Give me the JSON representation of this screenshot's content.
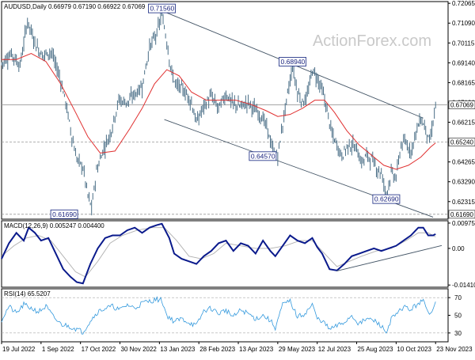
{
  "chart_data": [
    {
      "type": "line",
      "title": "AUDUSD,Daily  0.66979 0.67190 0.66922 0.67069",
      "watermark": "ActionForex.com",
      "ylim": [
        0.6145,
        0.7215
      ],
      "y_ticks": [
        0.72065,
        0.7109,
        0.70115,
        0.6914,
        0.68165,
        0.6719,
        0.66215,
        0.6524,
        0.64265,
        0.6329,
        0.62315,
        0.6134
      ],
      "x_tick_labels": [
        "19 Jul 2022",
        "1 Sep 2022",
        "17 Oct 2022",
        "30 Nov 2022",
        "13 Jan 2023",
        "28 Feb 2023",
        "13 Apr 2023",
        "29 May 2023",
        "12 Jul 2023",
        "25 Aug 2023",
        "10 Oct 2023",
        "23 Nov 2023"
      ],
      "x_tick_index": [
        0,
        32,
        64,
        96,
        128,
        160,
        192,
        224,
        256,
        288,
        320,
        352
      ],
      "price_path": [
        [
          0,
          0.691
        ],
        [
          8,
          0.696
        ],
        [
          15,
          0.69
        ],
        [
          21,
          0.712
        ],
        [
          28,
          0.7
        ],
        [
          33,
          0.695
        ],
        [
          40,
          0.697
        ],
        [
          47,
          0.685
        ],
        [
          52,
          0.672
        ],
        [
          57,
          0.655
        ],
        [
          61,
          0.644
        ],
        [
          66,
          0.64
        ],
        [
          70,
          0.626
        ],
        [
          73,
          0.62
        ],
        [
          77,
          0.638
        ],
        [
          82,
          0.648
        ],
        [
          88,
          0.656
        ],
        [
          95,
          0.673
        ],
        [
          102,
          0.672
        ],
        [
          108,
          0.676
        ],
        [
          114,
          0.68
        ],
        [
          120,
          0.699
        ],
        [
          126,
          0.706
        ],
        [
          130,
          0.7155
        ],
        [
          134,
          0.702
        ],
        [
          138,
          0.686
        ],
        [
          142,
          0.68
        ],
        [
          146,
          0.679
        ],
        [
          150,
          0.676
        ],
        [
          154,
          0.672
        ],
        [
          158,
          0.662
        ],
        [
          164,
          0.67
        ],
        [
          170,
          0.675
        ],
        [
          176,
          0.669
        ],
        [
          182,
          0.676
        ],
        [
          188,
          0.671
        ],
        [
          194,
          0.67
        ],
        [
          200,
          0.672
        ],
        [
          206,
          0.668
        ],
        [
          212,
          0.664
        ],
        [
          216,
          0.658
        ],
        [
          220,
          0.648
        ],
        [
          224,
          0.6457
        ],
        [
          228,
          0.661
        ],
        [
          232,
          0.676
        ],
        [
          236,
          0.6894
        ],
        [
          240,
          0.677
        ],
        [
          244,
          0.672
        ],
        [
          248,
          0.675
        ],
        [
          252,
          0.688
        ],
        [
          256,
          0.684
        ],
        [
          260,
          0.678
        ],
        [
          264,
          0.668
        ],
        [
          268,
          0.656
        ],
        [
          272,
          0.651
        ],
        [
          276,
          0.6455
        ],
        [
          280,
          0.65
        ],
        [
          284,
          0.651
        ],
        [
          288,
          0.649
        ],
        [
          292,
          0.642
        ],
        [
          296,
          0.646
        ],
        [
          300,
          0.644
        ],
        [
          304,
          0.64
        ],
        [
          308,
          0.637
        ],
        [
          312,
          0.6269
        ],
        [
          316,
          0.637
        ],
        [
          320,
          0.635
        ],
        [
          324,
          0.651
        ],
        [
          328,
          0.652
        ],
        [
          332,
          0.648
        ],
        [
          336,
          0.657
        ],
        [
          340,
          0.664
        ],
        [
          344,
          0.659
        ],
        [
          347,
          0.652
        ],
        [
          350,
          0.662
        ],
        [
          352,
          0.6707
        ]
      ],
      "sma_path": [
        [
          0,
          0.693
        ],
        [
          12,
          0.693
        ],
        [
          24,
          0.696
        ],
        [
          36,
          0.692
        ],
        [
          48,
          0.681
        ],
        [
          60,
          0.667
        ],
        [
          70,
          0.655
        ],
        [
          80,
          0.647
        ],
        [
          92,
          0.648
        ],
        [
          104,
          0.659
        ],
        [
          114,
          0.669
        ],
        [
          124,
          0.681
        ],
        [
          134,
          0.688
        ],
        [
          144,
          0.685
        ],
        [
          154,
          0.677
        ],
        [
          166,
          0.673
        ],
        [
          178,
          0.673
        ],
        [
          190,
          0.673
        ],
        [
          202,
          0.671
        ],
        [
          214,
          0.668
        ],
        [
          224,
          0.665
        ],
        [
          234,
          0.666
        ],
        [
          244,
          0.669
        ],
        [
          254,
          0.673
        ],
        [
          262,
          0.673
        ],
        [
          270,
          0.667
        ],
        [
          280,
          0.658
        ],
        [
          290,
          0.651
        ],
        [
          300,
          0.646
        ],
        [
          310,
          0.641
        ],
        [
          320,
          0.639
        ],
        [
          330,
          0.641
        ],
        [
          340,
          0.645
        ],
        [
          348,
          0.65
        ],
        [
          352,
          0.652
        ]
      ],
      "trend_lines": [
        {
          "from": [
            128,
            0.7175
          ],
          "to": [
            342,
            0.6642
          ]
        },
        {
          "from": [
            132,
            0.6635
          ],
          "to": [
            350,
            0.6155
          ]
        }
      ],
      "horizontal_lines": [
        {
          "value": 0.67069,
          "style": "solid",
          "label": "0.67069"
        },
        {
          "value": 0.6524,
          "style": "dashed",
          "label": "0.65240"
        },
        {
          "value": 0.6169,
          "style": "dashed",
          "label": "0.61690"
        }
      ],
      "annotations": [
        {
          "text": "0.71560",
          "x": 130,
          "y": 0.7156
        },
        {
          "text": "0.68940",
          "x": 236,
          "y": 0.6894
        },
        {
          "text": "0.64570",
          "x": 224,
          "y": 0.6457
        },
        {
          "text": "0.62690",
          "x": 312,
          "y": 0.6269
        },
        {
          "text": "0.61690",
          "x": 63,
          "y": 0.6169
        }
      ]
    },
    {
      "type": "line",
      "title": "MACD(12,26,9) 0.005247 0.004400",
      "ylim": [
        -0.01495,
        0.01065
      ],
      "y_ticks": [
        "0.009751",
        "0.00",
        "-0.014107"
      ],
      "y_tick_values": [
        0.009751,
        0.0,
        -0.014107
      ],
      "macd_path": [
        [
          0,
          -0.004
        ],
        [
          6,
          0.002
        ],
        [
          12,
          0.006
        ],
        [
          18,
          0.003
        ],
        [
          22,
          0.008
        ],
        [
          27,
          0.006
        ],
        [
          32,
          0.003
        ],
        [
          38,
          0.004
        ],
        [
          44,
          -0.002
        ],
        [
          50,
          -0.008
        ],
        [
          56,
          -0.011
        ],
        [
          61,
          -0.013
        ],
        [
          66,
          -0.0135
        ],
        [
          72,
          -0.006
        ],
        [
          78,
          0.0
        ],
        [
          84,
          0.004
        ],
        [
          90,
          0.005
        ],
        [
          96,
          0.005
        ],
        [
          102,
          0.007
        ],
        [
          108,
          0.008
        ],
        [
          114,
          0.006
        ],
        [
          120,
          0.008
        ],
        [
          126,
          0.009
        ],
        [
          130,
          0.0095
        ],
        [
          136,
          0.004
        ],
        [
          140,
          -0.002
        ],
        [
          146,
          -0.004
        ],
        [
          152,
          -0.005
        ],
        [
          158,
          -0.006
        ],
        [
          164,
          -0.003
        ],
        [
          170,
          -0.001
        ],
        [
          176,
          0.002
        ],
        [
          182,
          0.003
        ],
        [
          188,
          -0.001
        ],
        [
          194,
          0.002
        ],
        [
          200,
          0.001
        ],
        [
          206,
          -0.002
        ],
        [
          212,
          0.003
        ],
        [
          218,
          -0.001
        ],
        [
          222,
          -0.003
        ],
        [
          228,
          0.001
        ],
        [
          234,
          0.005
        ],
        [
          240,
          0.003
        ],
        [
          246,
          0.002
        ],
        [
          252,
          0.004
        ],
        [
          256,
          0.0005
        ],
        [
          260,
          -0.002
        ],
        [
          266,
          -0.008
        ],
        [
          272,
          -0.0085
        ],
        [
          278,
          -0.006
        ],
        [
          284,
          -0.003
        ],
        [
          290,
          -0.002
        ],
        [
          296,
          -0.001
        ],
        [
          302,
          0.0
        ],
        [
          308,
          -0.001
        ],
        [
          314,
          0.0
        ],
        [
          320,
          0.001
        ],
        [
          326,
          0.003
        ],
        [
          332,
          0.005
        ],
        [
          338,
          0.008
        ],
        [
          342,
          0.008
        ],
        [
          346,
          0.005
        ],
        [
          350,
          0.005
        ],
        [
          352,
          0.0055
        ]
      ],
      "signal_path": [
        [
          0,
          -0.003
        ],
        [
          10,
          0.001
        ],
        [
          20,
          0.004
        ],
        [
          30,
          0.005
        ],
        [
          40,
          0.003
        ],
        [
          50,
          -0.003
        ],
        [
          60,
          -0.009
        ],
        [
          68,
          -0.011
        ],
        [
          78,
          -0.005
        ],
        [
          88,
          0.002
        ],
        [
          98,
          0.005
        ],
        [
          110,
          0.007
        ],
        [
          122,
          0.008
        ],
        [
          132,
          0.008
        ],
        [
          142,
          0.003
        ],
        [
          152,
          -0.003
        ],
        [
          162,
          -0.004
        ],
        [
          172,
          -0.002
        ],
        [
          182,
          0.002
        ],
        [
          194,
          0.001
        ],
        [
          206,
          0.0
        ],
        [
          218,
          0.0
        ],
        [
          230,
          0.001
        ],
        [
          242,
          0.003
        ],
        [
          252,
          0.003
        ],
        [
          262,
          -0.002
        ],
        [
          272,
          -0.007
        ],
        [
          282,
          -0.005
        ],
        [
          292,
          -0.003
        ],
        [
          304,
          -0.001
        ],
        [
          316,
          0.0
        ],
        [
          328,
          0.003
        ],
        [
          338,
          0.006
        ],
        [
          346,
          0.006
        ],
        [
          352,
          0.0044
        ]
      ],
      "trend_lines": [
        {
          "from": [
            272,
            -0.0087
          ],
          "to": [
            357,
            0.0011
          ]
        }
      ]
    },
    {
      "type": "line",
      "title": "RSI(14) 65.5207",
      "ylim": [
        20,
        80
      ],
      "y_ticks": [
        70,
        50,
        30
      ],
      "levels": [
        70,
        30
      ],
      "rsi_path": [
        [
          0,
          45
        ],
        [
          6,
          60
        ],
        [
          12,
          52
        ],
        [
          18,
          62
        ],
        [
          24,
          58
        ],
        [
          30,
          54
        ],
        [
          36,
          60
        ],
        [
          42,
          48
        ],
        [
          48,
          40
        ],
        [
          54,
          38
        ],
        [
          60,
          35
        ],
        [
          66,
          31
        ],
        [
          72,
          44
        ],
        [
          78,
          54
        ],
        [
          84,
          58
        ],
        [
          90,
          60
        ],
        [
          96,
          56
        ],
        [
          102,
          62
        ],
        [
          108,
          58
        ],
        [
          114,
          64
        ],
        [
          120,
          66
        ],
        [
          126,
          68
        ],
        [
          130,
          67
        ],
        [
          134,
          50
        ],
        [
          140,
          43
        ],
        [
          146,
          46
        ],
        [
          152,
          42
        ],
        [
          158,
          38
        ],
        [
          164,
          55
        ],
        [
          170,
          58
        ],
        [
          176,
          52
        ],
        [
          182,
          56
        ],
        [
          188,
          48
        ],
        [
          194,
          56
        ],
        [
          200,
          52
        ],
        [
          206,
          46
        ],
        [
          212,
          50
        ],
        [
          218,
          44
        ],
        [
          222,
          36
        ],
        [
          228,
          62
        ],
        [
          234,
          66
        ],
        [
          240,
          48
        ],
        [
          246,
          52
        ],
        [
          252,
          62
        ],
        [
          256,
          46
        ],
        [
          260,
          44
        ],
        [
          266,
          34
        ],
        [
          272,
          38
        ],
        [
          278,
          42
        ],
        [
          284,
          50
        ],
        [
          290,
          40
        ],
        [
          296,
          46
        ],
        [
          302,
          44
        ],
        [
          308,
          38
        ],
        [
          312,
          30
        ],
        [
          316,
          46
        ],
        [
          320,
          50
        ],
        [
          326,
          60
        ],
        [
          332,
          56
        ],
        [
          338,
          64
        ],
        [
          342,
          66
        ],
        [
          346,
          52
        ],
        [
          350,
          58
        ],
        [
          352,
          65.5
        ]
      ]
    }
  ]
}
